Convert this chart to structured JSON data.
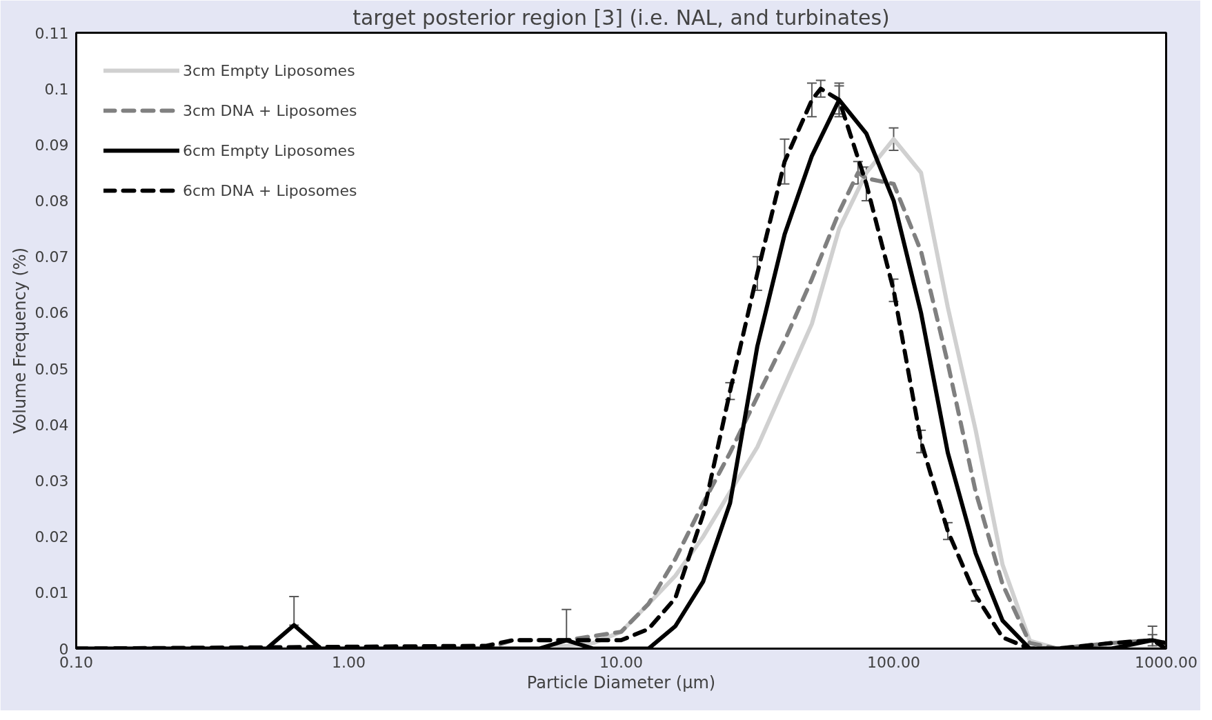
{
  "chart_data": {
    "type": "line",
    "title": "target posterior region [3] (i.e. NAL, and turbinates)",
    "xlabel": "Particle Diameter (µm)",
    "ylabel": "Volume Frequency (%)",
    "log": "x",
    "xlim": [
      0.1,
      1000
    ],
    "ylim": [
      0,
      0.11
    ],
    "xticks": [
      {
        "value": 0.1,
        "label": "0.10"
      },
      {
        "value": 1,
        "label": "1.00"
      },
      {
        "value": 10,
        "label": "10.00"
      },
      {
        "value": 100,
        "label": "100.00"
      },
      {
        "value": 1000,
        "label": "1000.00"
      }
    ],
    "yticks": [
      0,
      0.01,
      0.02,
      0.03,
      0.04,
      0.05,
      0.06,
      0.07,
      0.08,
      0.09,
      0.1,
      0.11
    ],
    "grid": false,
    "legend": "top left",
    "marker": "none",
    "series": [
      {
        "name": "3cm Empty Liposomes",
        "color": "#d0d0d0",
        "line_style": "solid",
        "x": [
          0.1,
          1,
          5,
          7.9,
          10,
          12.6,
          15.8,
          20,
          25.1,
          31.6,
          39.8,
          50.1,
          63.1,
          79.4,
          100,
          126,
          158,
          200,
          251,
          316,
          398,
          631,
          1000
        ],
        "values": [
          0,
          0,
          0,
          0.001,
          0.003,
          0.008,
          0.013,
          0.02,
          0.028,
          0.036,
          0.047,
          0.058,
          0.075,
          0.085,
          0.091,
          0.085,
          0.061,
          0.039,
          0.015,
          0.0014,
          0,
          0,
          0
        ],
        "errors": [
          null,
          null,
          null,
          null,
          null,
          null,
          null,
          null,
          null,
          null,
          null,
          null,
          null,
          null,
          0.002,
          null,
          null,
          null,
          null,
          null,
          null,
          null,
          null
        ]
      },
      {
        "name": "3cm DNA + Liposomes",
        "color": "#808080",
        "line_style": "dashed",
        "x": [
          0.1,
          3.2,
          4,
          6.3,
          10,
          12.6,
          15.8,
          20,
          25.1,
          31.6,
          39.8,
          50.1,
          63.1,
          74,
          79.4,
          100,
          126,
          158,
          200,
          251,
          316,
          398,
          631,
          891,
          1000
        ],
        "values": [
          0,
          0,
          0.0015,
          0.0015,
          0.003,
          0.008,
          0.016,
          0.026,
          0.035,
          0.045,
          0.055,
          0.066,
          0.078,
          0.085,
          0.084,
          0.083,
          0.071,
          0.051,
          0.028,
          0.0115,
          0.001,
          0,
          0.001,
          0.0015,
          0.001
        ],
        "errors": [
          null,
          null,
          null,
          null,
          null,
          null,
          null,
          null,
          null,
          null,
          null,
          null,
          null,
          0.002,
          null,
          null,
          null,
          null,
          null,
          null,
          null,
          null,
          null,
          0.001,
          null
        ]
      },
      {
        "name": "6cm Empty Liposomes",
        "color": "#000000",
        "line_style": "solid",
        "x": [
          0.1,
          0.5,
          0.63,
          0.79,
          5,
          6.3,
          7.9,
          10,
          12.6,
          15.8,
          20,
          25.1,
          31.6,
          39.8,
          50.1,
          63.1,
          79.4,
          100,
          126,
          158,
          200,
          251,
          316,
          398,
          631,
          891,
          1000
        ],
        "values": [
          0,
          0,
          0.0042,
          0,
          0,
          0.0015,
          0,
          0,
          0,
          0.004,
          0.012,
          0.026,
          0.054,
          0.074,
          0.088,
          0.098,
          0.092,
          0.08,
          0.06,
          0.035,
          0.017,
          0.005,
          0,
          0,
          0,
          0.0015,
          0.001
        ],
        "errors": [
          null,
          null,
          [
            0.0042,
            0.0093
          ],
          null,
          null,
          [
            0.0015,
            0.007
          ],
          null,
          null,
          null,
          null,
          null,
          null,
          null,
          null,
          null,
          0.0025,
          null,
          null,
          null,
          null,
          null,
          null,
          null,
          null,
          null,
          0.0025,
          null
        ]
      },
      {
        "name": "6cm DNA + Liposomes",
        "color": "#000000",
        "line_style": "dashed",
        "x": [
          0.1,
          3.2,
          4,
          6.3,
          10,
          12.6,
          15.8,
          20,
          25.1,
          31.6,
          39.8,
          50.1,
          54,
          63.1,
          79.4,
          100,
          126,
          158,
          200,
          251,
          316,
          398,
          631,
          891,
          1000
        ],
        "values": [
          0,
          0.0005,
          0.0015,
          0.0015,
          0.0015,
          0.0035,
          0.009,
          0.024,
          0.046,
          0.067,
          0.087,
          0.098,
          0.1,
          0.098,
          0.083,
          0.064,
          0.037,
          0.021,
          0.0095,
          0.002,
          0,
          0,
          0.001,
          0.0015,
          0
        ],
        "errors": [
          null,
          null,
          null,
          null,
          null,
          null,
          null,
          null,
          0.0015,
          0.003,
          0.004,
          0.003,
          0.0015,
          0.003,
          0.003,
          0.002,
          0.002,
          0.0015,
          0.001,
          null,
          null,
          null,
          null,
          null,
          null
        ]
      }
    ]
  }
}
